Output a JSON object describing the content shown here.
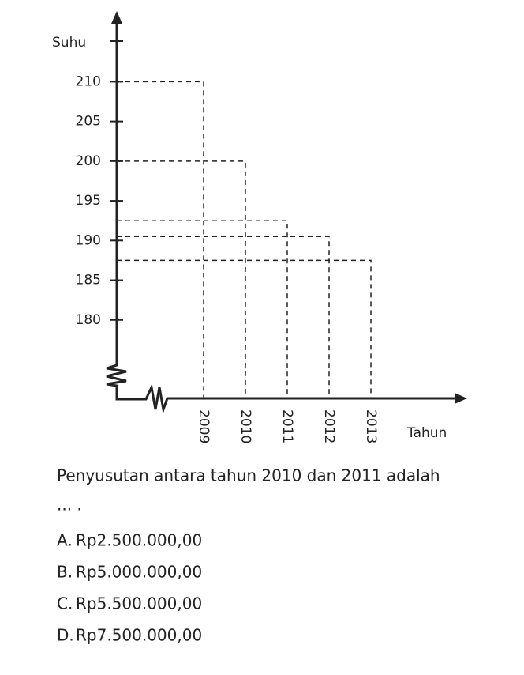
{
  "chart_data": {
    "type": "line",
    "y_label": "Suhu",
    "x_label": "Tahun",
    "categories": [
      "2009",
      "2010",
      "2011",
      "2012",
      "2013"
    ],
    "values": [
      210,
      200,
      192.5,
      190.5,
      187.5
    ],
    "ylim": [
      175,
      218.5
    ],
    "yticks": [
      180,
      185,
      190,
      195,
      200,
      205,
      210
    ],
    "color": "#222222",
    "dashed_projections": true
  },
  "question": "Penyusutan antara tahun 2010 dan 2011 adalah",
  "question_tail": "... .",
  "options": [
    {
      "letter": "A.",
      "text": "Rp2.500.000,00"
    },
    {
      "letter": "B.",
      "text": "Rp5.000.000,00"
    },
    {
      "letter": "C.",
      "text": "Rp5.500.000,00"
    },
    {
      "letter": "D.",
      "text": "Rp7.500.000,00"
    }
  ]
}
